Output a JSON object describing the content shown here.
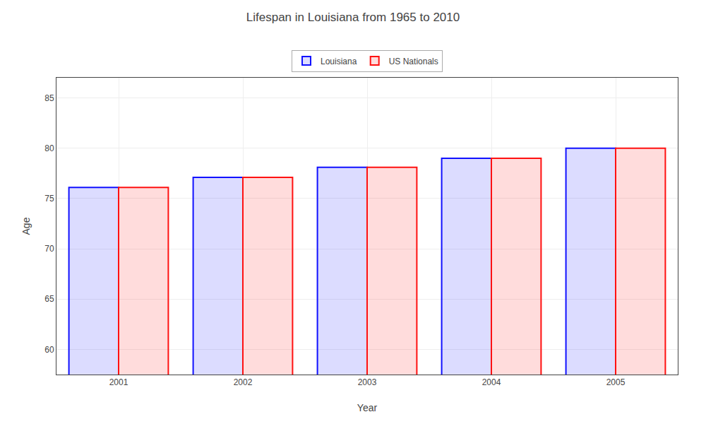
{
  "chart_data": {
    "type": "bar",
    "title": "Lifespan in Louisiana from 1965 to 2010",
    "xlabel": "Year",
    "ylabel": "Age",
    "categories": [
      "2001",
      "2002",
      "2003",
      "2004",
      "2005"
    ],
    "series": [
      {
        "name": "Louisiana",
        "color": "#1111ff",
        "values": [
          76.1,
          77.1,
          78.1,
          79.0,
          80.0
        ]
      },
      {
        "name": "US Nationals",
        "color": "#ff1111",
        "values": [
          76.1,
          77.1,
          78.1,
          79.0,
          80.0
        ]
      }
    ],
    "ylim": [
      57.5,
      87
    ],
    "yticks": [
      60,
      65,
      70,
      75,
      80,
      85
    ],
    "grid": true,
    "legend": "upper center"
  }
}
